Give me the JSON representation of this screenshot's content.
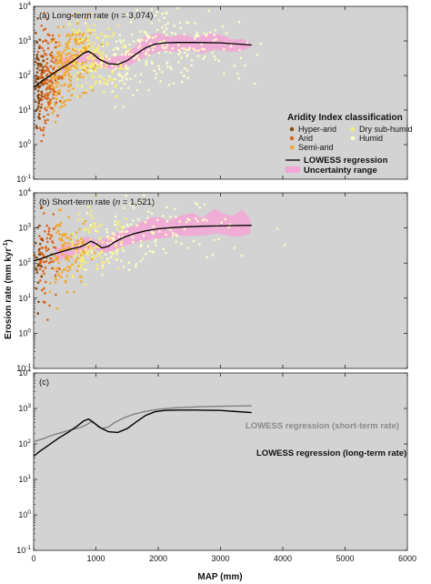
{
  "chart_data": {
    "type": "scatter",
    "xlabel": "MAP (mm)",
    "ylabel_main": "Erosion rate (mm kyr",
    "ylabel_sup": "-1",
    "ylabel_close": ")",
    "xlim": [
      0,
      6000
    ],
    "ylim_log10": [
      -1,
      4
    ],
    "x_ticks": [
      "0",
      "1000",
      "2000",
      "3000",
      "4000",
      "5000",
      "6000"
    ],
    "y_ticks": [
      {
        "base": "10",
        "exp": "-1"
      },
      {
        "base": "10",
        "exp": "0"
      },
      {
        "base": "10",
        "exp": "1"
      },
      {
        "base": "10",
        "exp": "2"
      },
      {
        "base": "10",
        "exp": "3"
      },
      {
        "base": "10",
        "exp": "4"
      }
    ],
    "colors": {
      "background": "#d3d3d3",
      "hyper_arid": "#8a4a12",
      "arid": "#d9661e",
      "semi_arid": "#f0a830",
      "dry_sub_humid": "#f7ee70",
      "humid": "#fdfbc6",
      "uncertainty": "#f3a6d6",
      "lowess_long": "#000000",
      "lowess_short_c": "#808080"
    },
    "panels": [
      {
        "id": "a",
        "label_prefix": "(a)  Long-term rate (",
        "label_n": "n",
        "label_suffix": " = 3,074)",
        "lowess": [
          [
            0,
            45
          ],
          [
            100,
            62
          ],
          [
            250,
            95
          ],
          [
            400,
            145
          ],
          [
            550,
            210
          ],
          [
            700,
            320
          ],
          [
            800,
            440
          ],
          [
            880,
            500
          ],
          [
            950,
            420
          ],
          [
            1050,
            300
          ],
          [
            1200,
            220
          ],
          [
            1350,
            210
          ],
          [
            1500,
            270
          ],
          [
            1650,
            420
          ],
          [
            1800,
            640
          ],
          [
            1950,
            810
          ],
          [
            2100,
            880
          ],
          [
            2300,
            900
          ],
          [
            2600,
            900
          ],
          [
            3000,
            880
          ],
          [
            3500,
            760
          ]
        ],
        "band_upper": [
          [
            450,
            310
          ],
          [
            600,
            380
          ],
          [
            800,
            550
          ],
          [
            1000,
            420
          ],
          [
            1200,
            330
          ],
          [
            1400,
            370
          ],
          [
            1600,
            620
          ],
          [
            1800,
            1400
          ],
          [
            2000,
            1700
          ],
          [
            2200,
            1300
          ],
          [
            2400,
            1600
          ],
          [
            2600,
            1200
          ],
          [
            2800,
            1700
          ],
          [
            3000,
            1500
          ],
          [
            3200,
            1100
          ],
          [
            3350,
            1150
          ],
          [
            3480,
            900
          ]
        ],
        "band_lower": [
          [
            3480,
            650
          ],
          [
            3300,
            480
          ],
          [
            3100,
            500
          ],
          [
            2900,
            560
          ],
          [
            2700,
            430
          ],
          [
            2500,
            550
          ],
          [
            2300,
            480
          ],
          [
            2100,
            520
          ],
          [
            1900,
            430
          ],
          [
            1700,
            280
          ],
          [
            1500,
            180
          ],
          [
            1300,
            150
          ],
          [
            1100,
            160
          ],
          [
            900,
            260
          ],
          [
            700,
            240
          ],
          [
            550,
            160
          ],
          [
            450,
            120
          ]
        ]
      },
      {
        "id": "b",
        "label_prefix": "(b)  Short-term rate (",
        "label_n": "n",
        "label_suffix": " = 1,521)",
        "lowess": [
          [
            0,
            115
          ],
          [
            150,
            140
          ],
          [
            300,
            175
          ],
          [
            450,
            210
          ],
          [
            600,
            250
          ],
          [
            750,
            290
          ],
          [
            850,
            350
          ],
          [
            920,
            420
          ],
          [
            1000,
            360
          ],
          [
            1100,
            270
          ],
          [
            1200,
            300
          ],
          [
            1300,
            400
          ],
          [
            1450,
            540
          ],
          [
            1600,
            680
          ],
          [
            1800,
            830
          ],
          [
            2000,
            950
          ],
          [
            2300,
            1050
          ],
          [
            2700,
            1120
          ],
          [
            3100,
            1160
          ],
          [
            3500,
            1190
          ]
        ],
        "band_upper": [
          [
            350,
            260
          ],
          [
            600,
            360
          ],
          [
            850,
            560
          ],
          [
            1050,
            430
          ],
          [
            1250,
            620
          ],
          [
            1450,
            900
          ],
          [
            1650,
            1250
          ],
          [
            1850,
            1900
          ],
          [
            2000,
            2100
          ],
          [
            2150,
            1600
          ],
          [
            2350,
            2200
          ],
          [
            2550,
            2700
          ],
          [
            2700,
            1900
          ],
          [
            2900,
            3500
          ],
          [
            3050,
            2600
          ],
          [
            3200,
            2200
          ],
          [
            3350,
            3400
          ],
          [
            3480,
            1800
          ]
        ],
        "band_lower": [
          [
            3480,
            700
          ],
          [
            3300,
            560
          ],
          [
            3150,
            600
          ],
          [
            2950,
            700
          ],
          [
            2750,
            620
          ],
          [
            2500,
            590
          ],
          [
            2300,
            600
          ],
          [
            2100,
            520
          ],
          [
            1900,
            480
          ],
          [
            1700,
            400
          ],
          [
            1500,
            330
          ],
          [
            1300,
            240
          ],
          [
            1150,
            200
          ],
          [
            950,
            250
          ],
          [
            750,
            190
          ],
          [
            550,
            150
          ],
          [
            350,
            110
          ]
        ]
      },
      {
        "id": "c",
        "label": "(c)",
        "lowess_short": [
          [
            0,
            115
          ],
          [
            150,
            140
          ],
          [
            300,
            175
          ],
          [
            450,
            210
          ],
          [
            600,
            250
          ],
          [
            750,
            290
          ],
          [
            850,
            350
          ],
          [
            920,
            420
          ],
          [
            1000,
            360
          ],
          [
            1100,
            270
          ],
          [
            1200,
            300
          ],
          [
            1300,
            400
          ],
          [
            1450,
            540
          ],
          [
            1600,
            680
          ],
          [
            1800,
            830
          ],
          [
            2000,
            950
          ],
          [
            2300,
            1050
          ],
          [
            2700,
            1120
          ],
          [
            3100,
            1160
          ],
          [
            3500,
            1190
          ]
        ],
        "lowess_long": [
          [
            0,
            45
          ],
          [
            100,
            62
          ],
          [
            250,
            95
          ],
          [
            400,
            145
          ],
          [
            550,
            210
          ],
          [
            700,
            320
          ],
          [
            800,
            440
          ],
          [
            880,
            500
          ],
          [
            950,
            420
          ],
          [
            1050,
            300
          ],
          [
            1200,
            220
          ],
          [
            1350,
            210
          ],
          [
            1500,
            270
          ],
          [
            1650,
            420
          ],
          [
            1800,
            640
          ],
          [
            1950,
            810
          ],
          [
            2100,
            880
          ],
          [
            2300,
            900
          ],
          [
            2600,
            900
          ],
          [
            3000,
            880
          ],
          [
            3500,
            760
          ]
        ],
        "label_short": "LOWESS regression (short-term rate)",
        "label_long": "LOWESS regression (long-term rate)"
      }
    ],
    "legend": {
      "title": "Aridity Index classification",
      "items": [
        {
          "label": "Hyper-arid",
          "key": "hyper_arid"
        },
        {
          "label": "Arid",
          "key": "arid"
        },
        {
          "label": "Semi-arid",
          "key": "semi_arid"
        },
        {
          "label": "Dry sub-humid",
          "key": "dry_sub_humid"
        },
        {
          "label": "Humid",
          "key": "humid"
        }
      ],
      "lowess_label": "LOWESS regression",
      "uncertainty_label": "Uncertainty range",
      "placement": "right, panel a"
    }
  }
}
